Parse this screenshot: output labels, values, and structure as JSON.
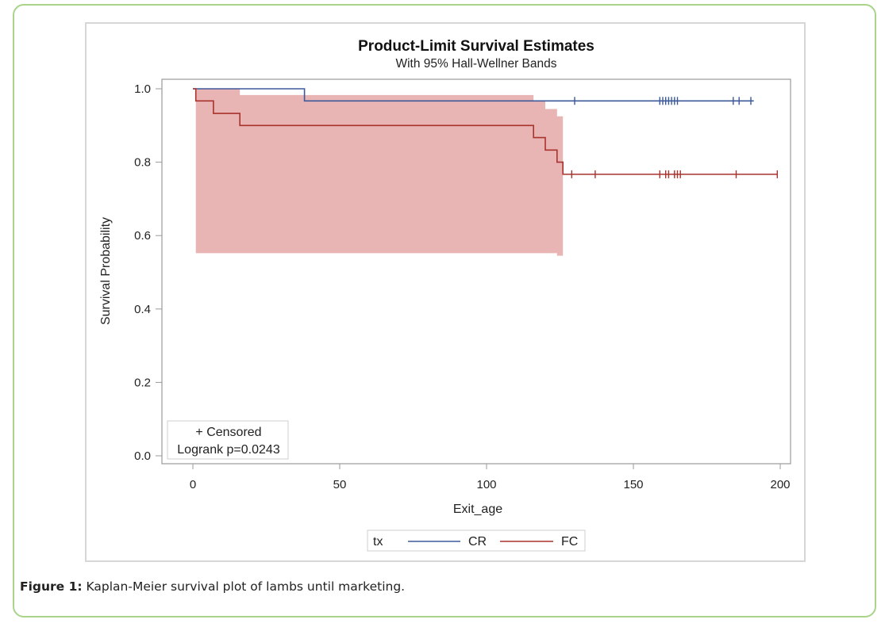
{
  "caption": {
    "label": "Figure 1:",
    "text": "Kaplan-Meier survival plot of lambs until marketing."
  },
  "chart_data": {
    "type": "line",
    "subtype": "kaplan-meier-step",
    "title": "Product-Limit Survival Estimates",
    "subtitle": "With 95% Hall-Wellner Bands",
    "xlabel": "Exit_age",
    "ylabel": "Survival Probability",
    "xlim": [
      -10,
      203
    ],
    "ylim": [
      0,
      1.03
    ],
    "xticks": [
      0,
      50,
      100,
      150,
      200
    ],
    "xtick_labels": [
      "0",
      "50",
      "100",
      "150",
      "200"
    ],
    "yticks": [
      0.0,
      0.2,
      0.4,
      0.6,
      0.8,
      1.0
    ],
    "ytick_labels": [
      "0.0",
      "0.2",
      "0.4",
      "0.6",
      "0.8",
      "1.0"
    ],
    "grid": false,
    "inset_legend": {
      "position": "bottom-left",
      "lines": [
        "+ Censored",
        "Logrank p=0.0243"
      ]
    },
    "legend": {
      "position": "bottom",
      "title": "tx",
      "entries": [
        {
          "name": "CR",
          "color": "#3c5a9a"
        },
        {
          "name": "FC",
          "color": "#a8322d"
        }
      ]
    },
    "band": {
      "name": "FC 95% Hall-Wellner band",
      "color": "#e8b4b4",
      "upper": [
        [
          1,
          1.0
        ],
        [
          16,
          1.0
        ],
        [
          16,
          0.983
        ],
        [
          116,
          0.983
        ],
        [
          116,
          0.967
        ],
        [
          120,
          0.967
        ],
        [
          120,
          0.945
        ],
        [
          124,
          0.945
        ],
        [
          124,
          0.925
        ],
        [
          126,
          0.925
        ]
      ],
      "lower": [
        [
          1,
          0.552
        ],
        [
          124,
          0.552
        ],
        [
          124,
          0.545
        ],
        [
          126,
          0.545
        ]
      ]
    },
    "series": [
      {
        "name": "CR",
        "color": "#3c5a9a",
        "steps": [
          [
            0,
            1.0
          ],
          [
            38,
            0.967
          ],
          [
            191,
            0.967
          ]
        ],
        "censored": [
          130,
          159,
          160,
          161,
          162,
          163,
          164,
          165,
          184,
          186,
          190
        ]
      },
      {
        "name": "FC",
        "color": "#a8322d",
        "steps": [
          [
            0,
            1.0
          ],
          [
            1,
            0.967
          ],
          [
            7,
            0.933
          ],
          [
            16,
            0.9
          ],
          [
            116,
            0.867
          ],
          [
            120,
            0.833
          ],
          [
            124,
            0.8
          ],
          [
            126,
            0.767
          ],
          [
            199,
            0.767
          ]
        ],
        "censored": [
          129,
          137,
          159,
          161,
          162,
          164,
          165,
          166,
          185,
          199
        ]
      }
    ]
  }
}
